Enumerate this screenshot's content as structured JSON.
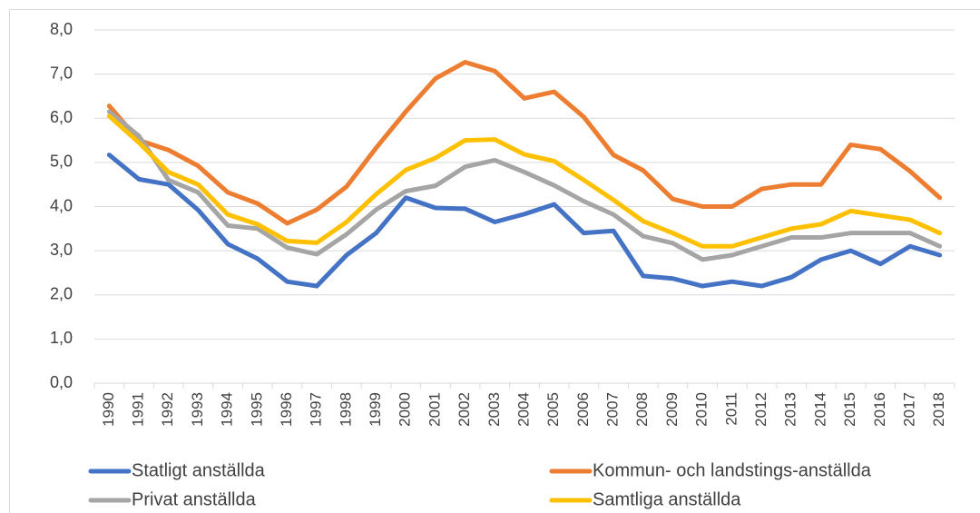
{
  "chart_data": {
    "type": "line",
    "categories": [
      "1990",
      "1991",
      "1992",
      "1993",
      "1994",
      "1995",
      "1996",
      "1997",
      "1998",
      "1999",
      "2000",
      "2001",
      "2002",
      "2003",
      "2004",
      "2005",
      "2006",
      "2007",
      "2008",
      "2009",
      "2010",
      "2011",
      "2012",
      "2013",
      "2014",
      "2015",
      "2016",
      "2017",
      "2018"
    ],
    "series": [
      {
        "name": "Statligt anställda",
        "color": "#4472c4",
        "values": [
          5.17,
          4.62,
          4.5,
          3.92,
          3.15,
          2.82,
          2.3,
          2.2,
          2.9,
          3.4,
          4.2,
          3.97,
          3.95,
          3.65,
          3.83,
          4.05,
          3.4,
          3.45,
          2.43,
          2.37,
          2.2,
          2.3,
          2.2,
          2.4,
          2.8,
          3.0,
          2.7,
          3.1,
          2.9
        ]
      },
      {
        "name": "Kommun- och landstings-anställda",
        "color": "#ed7d31",
        "values": [
          6.28,
          5.5,
          5.28,
          4.92,
          4.32,
          4.07,
          3.62,
          3.93,
          4.45,
          5.33,
          6.15,
          6.9,
          7.27,
          7.07,
          6.45,
          6.6,
          6.03,
          5.17,
          4.82,
          4.17,
          4.0,
          4.0,
          4.4,
          4.5,
          4.5,
          5.4,
          5.3,
          4.8,
          4.2
        ]
      },
      {
        "name": "Privat anställda",
        "color": "#a5a5a5",
        "values": [
          6.15,
          5.6,
          4.6,
          4.32,
          3.57,
          3.5,
          3.07,
          2.92,
          3.37,
          3.93,
          4.35,
          4.47,
          4.9,
          5.05,
          4.78,
          4.48,
          4.12,
          3.82,
          3.33,
          3.17,
          2.8,
          2.9,
          3.1,
          3.3,
          3.3,
          3.4,
          3.4,
          3.4,
          3.1
        ]
      },
      {
        "name": "Samtliga anställda",
        "color": "#ffc000",
        "values": [
          6.05,
          5.45,
          4.78,
          4.5,
          3.82,
          3.6,
          3.22,
          3.18,
          3.65,
          4.28,
          4.83,
          5.1,
          5.5,
          5.52,
          5.18,
          5.03,
          4.6,
          4.15,
          3.67,
          3.4,
          3.1,
          3.1,
          3.3,
          3.5,
          3.6,
          3.9,
          3.8,
          3.7,
          3.4
        ]
      }
    ],
    "ylim": [
      0,
      8
    ],
    "yticks": [
      {
        "value": 0,
        "label": "0,0"
      },
      {
        "value": 1,
        "label": "1,0"
      },
      {
        "value": 2,
        "label": "2,0"
      },
      {
        "value": 3,
        "label": "3,0"
      },
      {
        "value": 4,
        "label": "4,0"
      },
      {
        "value": 5,
        "label": "5,0"
      },
      {
        "value": 6,
        "label": "6,0"
      },
      {
        "value": 7,
        "label": "7,0"
      },
      {
        "value": 8,
        "label": "8,0"
      }
    ],
    "grid": true,
    "legend": "bottom"
  }
}
